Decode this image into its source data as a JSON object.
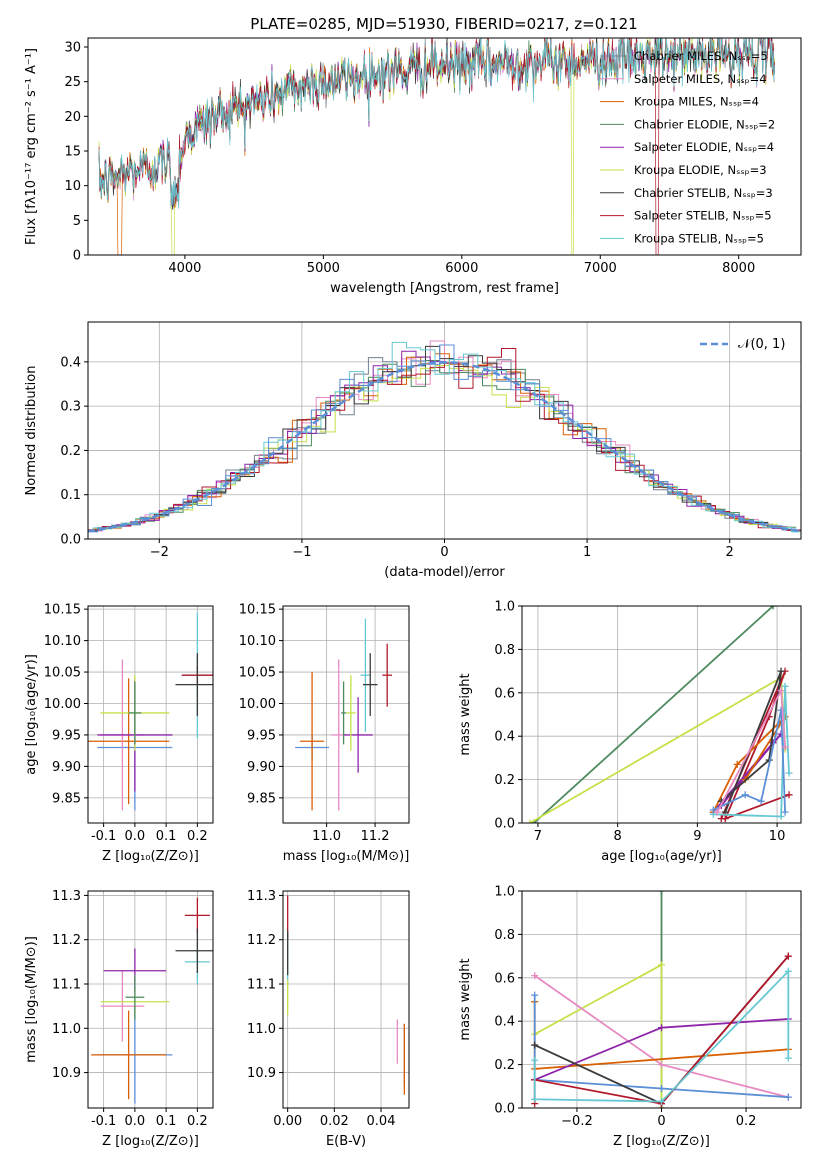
{
  "figure": {
    "title": "PLATE=0285, MJD=51930, FIBERID=0217, z=0.121"
  },
  "chart_data": [
    {
      "id": "spectrum",
      "type": "line",
      "xlabel": "wavelength [Angstrom, rest frame]",
      "ylabel": "Flux [fλ10⁻¹⁷ erg cm⁻² s⁻¹ A⁻¹]",
      "xlim": [
        3300,
        8450
      ],
      "ylim": [
        0,
        31.3
      ],
      "xticks": [
        4000,
        5000,
        6000,
        7000,
        8000
      ],
      "yticks": [
        0,
        5,
        10,
        15,
        20,
        25,
        30
      ],
      "grid": false,
      "legend_position": "right",
      "continuum_knots": [
        [
          3380,
          10.5
        ],
        [
          3600,
          12
        ],
        [
          3800,
          13
        ],
        [
          3950,
          13.5
        ],
        [
          4000,
          17
        ],
        [
          4200,
          20
        ],
        [
          4500,
          22
        ],
        [
          4800,
          24
        ],
        [
          5000,
          25
        ],
        [
          5500,
          26.5
        ],
        [
          6000,
          27.5
        ],
        [
          6500,
          27.8
        ],
        [
          7000,
          28.2
        ],
        [
          7500,
          28.8
        ],
        [
          8000,
          29
        ],
        [
          8260,
          29
        ]
      ],
      "series": [
        {
          "name": "Chabrier MILES, Nₛₛₚ=5",
          "color": "#708090"
        },
        {
          "name": "Salpeter MILES, Nₛₛₚ=4",
          "color": "#e78ac3"
        },
        {
          "name": "Kroupa MILES, Nₛₛₚ=4",
          "color": "#d95f02"
        },
        {
          "name": "Chabrier ELODIE, Nₛₛₚ=2",
          "color": "#4e8a5f"
        },
        {
          "name": "Salpeter ELODIE, Nₛₛₚ=4",
          "color": "#8e24aa"
        },
        {
          "name": "Kroupa ELODIE, Nₛₛₚ=3",
          "color": "#c6e04a"
        },
        {
          "name": "Chabrier STELIB, Nₛₛₚ=3",
          "color": "#3a3a3a"
        },
        {
          "name": "Salpeter STELIB, Nₛₛₚ=5",
          "color": "#b2182b"
        },
        {
          "name": "Kroupa STELIB, Nₛₛₚ=5",
          "color": "#66c8d2"
        }
      ]
    },
    {
      "id": "residuals",
      "type": "step",
      "xlabel": "(data-model)/error",
      "ylabel": "Normed distribution",
      "xlim": [
        -2.5,
        2.5
      ],
      "ylim": [
        0,
        0.49
      ],
      "xticks": [
        -2,
        -1,
        0,
        1,
        2
      ],
      "yticks": [
        0.0,
        0.1,
        0.2,
        0.3,
        0.4
      ],
      "grid": true,
      "bin_width": 0.1,
      "legend": "𝒩(0, 1)",
      "legend_position": "top-right",
      "gaussian": {
        "mean": 0,
        "sigma": 1,
        "color": "#5b8fd6"
      },
      "series_colors": [
        "#708090",
        "#e78ac3",
        "#d95f02",
        "#4e8a5f",
        "#8e24aa",
        "#c6e04a",
        "#3a3a3a",
        "#b2182b",
        "#66c8d2",
        "#5b8fd6"
      ]
    },
    {
      "id": "age_vs_Z",
      "type": "errorbar",
      "xlabel": "Z [log₁₀(Z/Z⊙)]",
      "ylabel": "age  [log₁₀(age/yr)]",
      "xlim": [
        -0.15,
        0.25
      ],
      "ylim": [
        9.81,
        10.155
      ],
      "xticks": [
        -0.1,
        0.0,
        0.1,
        0.2
      ],
      "yticks": [
        9.85,
        9.9,
        9.95,
        10.0,
        10.05,
        10.1,
        10.15
      ],
      "grid": true,
      "points": [
        {
          "x": 0.0,
          "y": 9.93,
          "xerr": 0.12,
          "yerr": 0.1,
          "color": "#5b8fd6"
        },
        {
          "x": -0.02,
          "y": 9.94,
          "xerr": 0.13,
          "yerr": 0.1,
          "color": "#d95f02"
        },
        {
          "x": -0.04,
          "y": 9.95,
          "xerr": 0.07,
          "yerr": 0.12,
          "color": "#e78ac3"
        },
        {
          "x": 0.0,
          "y": 9.95,
          "xerr": 0.12,
          "yerr": 0.09,
          "color": "#8e24aa"
        },
        {
          "x": 0.0,
          "y": 9.985,
          "xerr": 0.11,
          "yerr": 0.06,
          "color": "#c6e04a"
        },
        {
          "x": 0.0,
          "y": 9.985,
          "xerr": 0.02,
          "yerr": 0.05,
          "color": "#4e8a5f"
        },
        {
          "x": 0.2,
          "y": 10.045,
          "xerr": 0.05,
          "yerr": 0.1,
          "color": "#66c8d2"
        },
        {
          "x": 0.2,
          "y": 10.045,
          "xerr": 0.05,
          "yerr": 0.015,
          "color": "#b2182b"
        },
        {
          "x": 0.2,
          "y": 10.03,
          "xerr": 0.07,
          "yerr": 0.05,
          "color": "#3a3a3a"
        }
      ]
    },
    {
      "id": "age_vs_mass",
      "type": "errorbar",
      "xlabel": "mass [log₁₀(M/M⊙)]",
      "ylabel": "",
      "xlim": [
        10.82,
        11.34
      ],
      "ylim": [
        9.81,
        10.155
      ],
      "xticks": [
        11.0,
        11.2
      ],
      "yticks": [
        9.85,
        9.9,
        9.95,
        10.0,
        10.05,
        10.1,
        10.15
      ],
      "grid": true,
      "points": [
        {
          "x": 10.94,
          "y": 9.93,
          "xerr": 0.07,
          "yerr": 0.02,
          "color": "#5b8fd6"
        },
        {
          "x": 10.94,
          "y": 9.94,
          "xerr": 0.05,
          "yerr": 0.11,
          "color": "#d95f02"
        },
        {
          "x": 11.05,
          "y": 9.95,
          "xerr": 0.03,
          "yerr": 0.12,
          "color": "#e78ac3"
        },
        {
          "x": 11.13,
          "y": 9.95,
          "xerr": 0.06,
          "yerr": 0.06,
          "color": "#8e24aa"
        },
        {
          "x": 11.1,
          "y": 9.985,
          "xerr": 0.02,
          "yerr": 0.06,
          "color": "#c6e04a"
        },
        {
          "x": 11.07,
          "y": 9.985,
          "xerr": 0.01,
          "yerr": 0.05,
          "color": "#4e8a5f"
        },
        {
          "x": 11.16,
          "y": 10.045,
          "xerr": 0.02,
          "yerr": 0.09,
          "color": "#66c8d2"
        },
        {
          "x": 11.25,
          "y": 10.045,
          "xerr": 0.02,
          "yerr": 0.05,
          "color": "#b2182b"
        },
        {
          "x": 11.18,
          "y": 10.03,
          "xerr": 0.03,
          "yerr": 0.05,
          "color": "#3a3a3a"
        }
      ]
    },
    {
      "id": "weight_vs_age",
      "type": "line",
      "xlabel": "age  [log₁₀(age/yr)]",
      "ylabel": "mass weight",
      "xlim": [
        6.8,
        10.3
      ],
      "ylim": [
        0,
        1.0
      ],
      "xticks": [
        7,
        8,
        9,
        10
      ],
      "yticks": [
        0.0,
        0.2,
        0.4,
        0.6,
        0.8,
        1.0
      ],
      "grid": true,
      "series": [
        {
          "color": "#4e8a5f",
          "points": [
            [
              6.95,
              0.0
            ],
            [
              9.95,
              1.0
            ]
          ]
        },
        {
          "color": "#c6e04a",
          "points": [
            [
              6.9,
              0.0
            ],
            [
              10.05,
              0.67
            ],
            [
              10.1,
              0.34
            ]
          ]
        },
        {
          "color": "#b2182b",
          "points": [
            [
              9.3,
              0.02
            ],
            [
              10.1,
              0.7
            ],
            [
              9.9,
              0.49
            ],
            [
              9.35,
              0.02
            ],
            [
              10.15,
              0.13
            ]
          ]
        },
        {
          "color": "#8e24aa",
          "points": [
            [
              9.2,
              0.05
            ],
            [
              9.95,
              0.37
            ],
            [
              10.05,
              0.41
            ],
            [
              9.3,
              0.08
            ]
          ]
        },
        {
          "color": "#d95f02",
          "points": [
            [
              9.2,
              0.05
            ],
            [
              9.5,
              0.27
            ],
            [
              10.1,
              0.49
            ],
            [
              9.6,
              0.2
            ]
          ]
        },
        {
          "color": "#3a3a3a",
          "points": [
            [
              9.3,
              0.1
            ],
            [
              9.9,
              0.29
            ],
            [
              10.05,
              0.7
            ],
            [
              9.35,
              0.05
            ]
          ]
        },
        {
          "color": "#66c8d2",
          "points": [
            [
              9.2,
              0.04
            ],
            [
              10.05,
              0.03
            ],
            [
              10.1,
              0.63
            ],
            [
              10.15,
              0.23
            ]
          ]
        },
        {
          "color": "#5b8fd6",
          "points": [
            [
              9.2,
              0.06
            ],
            [
              9.6,
              0.13
            ],
            [
              9.8,
              0.1
            ],
            [
              10.05,
              0.52
            ],
            [
              10.1,
              0.05
            ]
          ]
        },
        {
          "color": "#e78ac3",
          "points": [
            [
              9.25,
              0.05
            ],
            [
              10.05,
              0.61
            ],
            [
              10.1,
              0.35
            ]
          ]
        }
      ]
    },
    {
      "id": "mass_vs_Z",
      "type": "errorbar",
      "xlabel": "Z [log₁₀(Z/Z⊙)]",
      "ylabel": "mass [log₁₀(M/M⊙)]",
      "xlim": [
        -0.15,
        0.25
      ],
      "ylim": [
        10.82,
        11.31
      ],
      "xticks": [
        -0.1,
        0.0,
        0.1,
        0.2
      ],
      "yticks": [
        10.9,
        11.0,
        11.1,
        11.2,
        11.3
      ],
      "grid": true,
      "points": [
        {
          "x": 0.0,
          "y": 10.94,
          "xerr": 0.12,
          "yerr": 0.11,
          "color": "#5b8fd6"
        },
        {
          "x": -0.02,
          "y": 10.94,
          "xerr": 0.12,
          "yerr": 0.1,
          "color": "#d95f02"
        },
        {
          "x": -0.04,
          "y": 11.05,
          "xerr": 0.07,
          "yerr": 0.08,
          "color": "#e78ac3"
        },
        {
          "x": 0.0,
          "y": 11.13,
          "xerr": 0.1,
          "yerr": 0.05,
          "color": "#8e24aa"
        },
        {
          "x": 0.0,
          "y": 11.06,
          "xerr": 0.11,
          "yerr": 0.03,
          "color": "#c6e04a"
        },
        {
          "x": 0.0,
          "y": 11.07,
          "xerr": 0.03,
          "yerr": 0.05,
          "color": "#4e8a5f"
        },
        {
          "x": 0.2,
          "y": 11.15,
          "xerr": 0.04,
          "yerr": 0.05,
          "color": "#66c8d2"
        },
        {
          "x": 0.2,
          "y": 11.255,
          "xerr": 0.04,
          "yerr": 0.04,
          "color": "#b2182b"
        },
        {
          "x": 0.2,
          "y": 11.175,
          "xerr": 0.07,
          "yerr": 0.05,
          "color": "#3a3a3a"
        }
      ]
    },
    {
      "id": "mass_vs_ebv",
      "type": "errorbar",
      "xlabel": "E(B-V)",
      "ylabel": "",
      "xlim": [
        -0.002,
        0.052
      ],
      "ylim": [
        10.82,
        11.31
      ],
      "xticks": [
        0.0,
        0.02,
        0.04
      ],
      "yticks": [
        10.9,
        11.0,
        11.1,
        11.2,
        11.3
      ],
      "grid": true,
      "points": [
        {
          "x": 0.0,
          "y": 11.15,
          "xerr": 0,
          "yerr": 0.06,
          "color": "#66c8d2"
        },
        {
          "x": 0.0,
          "y": 11.25,
          "xerr": 0,
          "yerr": 0.05,
          "color": "#b2182b"
        },
        {
          "x": 0.0,
          "y": 11.07,
          "xerr": 0,
          "yerr": 0.04,
          "color": "#c6e04a"
        },
        {
          "x": 0.0,
          "y": 11.17,
          "xerr": 0,
          "yerr": 0.05,
          "color": "#3a3a3a"
        },
        {
          "x": 0.047,
          "y": 10.97,
          "xerr": 0,
          "yerr": 0.05,
          "color": "#e78ac3"
        },
        {
          "x": 0.05,
          "y": 10.94,
          "xerr": 0,
          "yerr": 0.07,
          "color": "#5b8fd6"
        },
        {
          "x": 0.05,
          "y": 10.93,
          "xerr": 0,
          "yerr": 0.08,
          "color": "#d95f02"
        }
      ]
    },
    {
      "id": "weight_vs_Z",
      "type": "line",
      "xlabel": "Z [log₁₀(Z/Z⊙)]",
      "ylabel": "mass weight",
      "xlim": [
        -0.33,
        0.33
      ],
      "ylim": [
        0,
        1.0
      ],
      "xticks": [
        -0.2,
        0.0,
        0.2
      ],
      "yticks": [
        0.0,
        0.2,
        0.4,
        0.6,
        0.8,
        1.0
      ],
      "grid": true,
      "series": [
        {
          "color": "#4e8a5f",
          "points": [
            [
              0.0,
              0.0
            ],
            [
              0.0,
              1.0
            ]
          ]
        },
        {
          "color": "#c6e04a",
          "points": [
            [
              -0.3,
              0.34
            ],
            [
              0.0,
              0.66
            ],
            [
              0.0,
              0.0
            ]
          ]
        },
        {
          "color": "#e78ac3",
          "points": [
            [
              -0.3,
              0.61
            ],
            [
              0.0,
              0.2
            ],
            [
              0.3,
              0.05
            ]
          ]
        },
        {
          "color": "#d95f02",
          "points": [
            [
              -0.3,
              0.49
            ],
            [
              -0.3,
              0.18
            ],
            [
              0.3,
              0.27
            ]
          ]
        },
        {
          "color": "#8e24aa",
          "points": [
            [
              -0.3,
              0.13
            ],
            [
              0.0,
              0.37
            ],
            [
              0.3,
              0.41
            ]
          ]
        },
        {
          "color": "#5b8fd6",
          "points": [
            [
              -0.3,
              0.52
            ],
            [
              -0.3,
              0.13
            ],
            [
              0.0,
              0.09
            ],
            [
              0.3,
              0.05
            ]
          ]
        },
        {
          "color": "#3a3a3a",
          "points": [
            [
              -0.3,
              0.29
            ],
            [
              0.0,
              0.02
            ],
            [
              0.3,
              0.7
            ]
          ]
        },
        {
          "color": "#b2182b",
          "points": [
            [
              -0.3,
              0.02
            ],
            [
              -0.3,
              0.13
            ],
            [
              0.0,
              0.02
            ],
            [
              0.3,
              0.7
            ]
          ]
        },
        {
          "color": "#66c8d2",
          "points": [
            [
              -0.3,
              0.22
            ],
            [
              -0.3,
              0.04
            ],
            [
              0.0,
              0.03
            ],
            [
              0.3,
              0.63
            ],
            [
              0.3,
              0.23
            ]
          ]
        }
      ]
    }
  ]
}
